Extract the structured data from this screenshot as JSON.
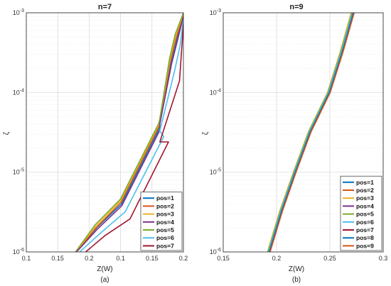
{
  "chart_data": [
    {
      "type": "line",
      "title": "n=7",
      "xlabel": "Z(W)",
      "ylabel": "ζ",
      "caption": "(a)",
      "xlim": [
        0.1,
        0.2
      ],
      "ylim": [
        1e-06,
        0.001
      ],
      "yscale": "log",
      "grid": true,
      "legend_position": "bottom-right",
      "x_tick_labels": [
        "0.1",
        "0.15",
        "0.2",
        "0.1",
        "0.15",
        "0.2"
      ],
      "y_tick_labels": [
        "10^-6",
        "10^-5",
        "10^-4",
        "10^-3"
      ],
      "series": [
        {
          "name": "pos=1",
          "color": "#0072BD",
          "x": [
            0.1318,
            0.1447,
            0.1606,
            0.1849,
            0.185,
            0.1923,
            0.1959,
            0.2
          ],
          "y": [
            1e-06,
            2e-06,
            4e-06,
            3.6e-05,
            4.2e-05,
            0.00024,
            0.00046,
            0.00092
          ]
        },
        {
          "name": "pos=2",
          "color": "#D95319",
          "x": [
            0.1318,
            0.1443,
            0.1603,
            0.1847,
            0.185,
            0.1918,
            0.1955,
            0.2
          ],
          "y": [
            1e-06,
            2e-06,
            4.2e-06,
            3.8e-05,
            4.4e-05,
            0.00025,
            0.00049,
            0.00095
          ]
        },
        {
          "name": "pos=3",
          "color": "#EDB120",
          "x": [
            0.1315,
            0.1441,
            0.1601,
            0.1845,
            0.185,
            0.1915,
            0.1951,
            0.2
          ],
          "y": [
            1e-06,
            2.1e-06,
            4.4e-06,
            4e-05,
            4.6e-05,
            0.00026,
            0.00052,
            0.00098
          ]
        },
        {
          "name": "pos=4",
          "color": "#7E2F8E",
          "x": [
            0.132,
            0.1449,
            0.1608,
            0.1851,
            0.185,
            0.1925,
            0.1961,
            0.2
          ],
          "y": [
            1e-06,
            1.9e-06,
            3.8e-06,
            3.4e-05,
            4e-05,
            0.00023,
            0.00044,
            0.0009
          ]
        },
        {
          "name": "pos=5",
          "color": "#77AC30",
          "x": [
            0.1313,
            0.1439,
            0.1599,
            0.1843,
            0.185,
            0.1912,
            0.1948,
            0.2
          ],
          "y": [
            1e-06,
            2.2e-06,
            4.6e-06,
            4.1e-05,
            4.7e-05,
            0.00027,
            0.00054,
            0.001
          ]
        },
        {
          "name": "pos=6",
          "color": "#4DBEEE",
          "x": [
            0.134,
            0.1469,
            0.163,
            0.1875,
            0.185,
            0.1945,
            0.1978,
            0.2
          ],
          "y": [
            1e-06,
            1.7e-06,
            3.2e-06,
            2.8e-05,
            3.3e-05,
            0.00019,
            0.00038,
            0.00082
          ]
        },
        {
          "name": "pos=7",
          "color": "#A2142F",
          "x": [
            0.1378,
            0.15,
            0.166,
            0.1905,
            0.185,
            0.1975,
            0.2
          ],
          "y": [
            1e-06,
            1.6e-06,
            2.6e-06,
            2.4e-05,
            2.4e-05,
            0.00014,
            0.00072
          ]
        }
      ]
    },
    {
      "type": "line",
      "title": "n=9",
      "xlabel": "Z(W)",
      "ylabel": "ζ",
      "caption": "(b)",
      "xlim": [
        0.15,
        0.3
      ],
      "ylim": [
        1e-06,
        0.001
      ],
      "yscale": "log",
      "grid": true,
      "legend_position": "bottom-right",
      "x_tick_labels": [
        "0.15",
        "0.2",
        "0.25",
        "0.3"
      ],
      "y_tick_labels": [
        "10^-6",
        "10^-5",
        "10^-4",
        "10^-3"
      ],
      "series": [
        {
          "name": "pos=1",
          "color": "#0072BD",
          "x": [
            0.1927,
            0.204,
            0.217,
            0.231,
            0.249,
            0.261,
            0.2715
          ],
          "y": [
            1e-06,
            3.2e-06,
            1e-05,
            3.2e-05,
            0.0001,
            0.00032,
            0.001
          ]
        },
        {
          "name": "pos=2",
          "color": "#D95319",
          "x": [
            0.1935,
            0.2048,
            0.2178,
            0.2318,
            0.2498,
            0.2618,
            0.2723
          ],
          "y": [
            1e-06,
            3.2e-06,
            1e-05,
            3.2e-05,
            0.0001,
            0.00032,
            0.001
          ]
        },
        {
          "name": "pos=3",
          "color": "#EDB120",
          "x": [
            0.1915,
            0.2028,
            0.2158,
            0.2298,
            0.2478,
            0.2596,
            0.27
          ],
          "y": [
            1e-06,
            3.2e-06,
            1e-05,
            3.2e-05,
            0.0001,
            0.00032,
            0.001
          ]
        },
        {
          "name": "pos=4",
          "color": "#7E2F8E",
          "x": [
            0.193,
            0.2043,
            0.2173,
            0.2313,
            0.2493,
            0.2613,
            0.2718
          ],
          "y": [
            1e-06,
            3.2e-06,
            1e-05,
            3.2e-05,
            0.0001,
            0.00032,
            0.001
          ]
        },
        {
          "name": "pos=5",
          "color": "#77AC30",
          "x": [
            0.192,
            0.2033,
            0.2163,
            0.2303,
            0.2483,
            0.2602,
            0.2707
          ],
          "y": [
            1e-06,
            3.2e-06,
            1e-05,
            3.2e-05,
            0.0001,
            0.00032,
            0.001
          ]
        },
        {
          "name": "pos=6",
          "color": "#4DBEEE",
          "x": [
            0.1925,
            0.2038,
            0.2168,
            0.2308,
            0.2488,
            0.2607,
            0.2712
          ],
          "y": [
            1e-06,
            3.2e-06,
            1e-05,
            3.2e-05,
            0.0001,
            0.00032,
            0.001
          ]
        },
        {
          "name": "pos=7",
          "color": "#A2142F",
          "x": [
            0.1938,
            0.2051,
            0.2181,
            0.2321,
            0.2501,
            0.2621,
            0.2726
          ],
          "y": [
            1e-06,
            3.2e-06,
            1e-05,
            3.2e-05,
            0.0001,
            0.00032,
            0.001
          ]
        },
        {
          "name": "pos=8",
          "color": "#0072BD",
          "x": [
            0.1932,
            0.2045,
            0.2175,
            0.2315,
            0.2495,
            0.2615,
            0.272
          ],
          "y": [
            1e-06,
            3.2e-06,
            1e-05,
            3.2e-05,
            0.0001,
            0.00032,
            0.001
          ]
        },
        {
          "name": "pos=9",
          "color": "#D95319",
          "x": [
            0.194,
            0.2053,
            0.2183,
            0.2323,
            0.2503,
            0.2623,
            0.2728
          ],
          "y": [
            1e-06,
            3.2e-06,
            1e-05,
            3.2e-05,
            0.0001,
            0.00032,
            0.001
          ]
        }
      ]
    }
  ]
}
